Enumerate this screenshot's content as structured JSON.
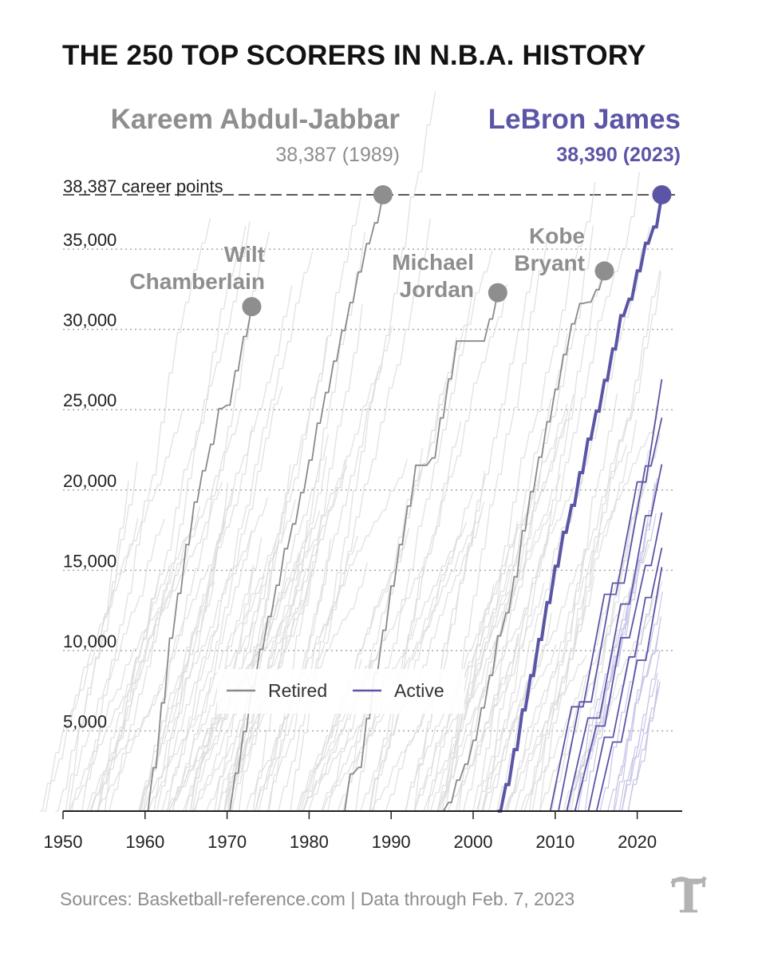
{
  "title": "THE 250 TOP SCORERS IN N.B.A. HISTORY",
  "source": "Sources: Basketball-reference.com | Data through Feb. 7, 2023",
  "colors": {
    "retired": "#8a8a8a",
    "active": "#5b55a6",
    "background_lines": "#e3e3e3"
  },
  "callouts": {
    "kareem": {
      "name": "Kareem Abdul-Jabbar",
      "stat": "38,387 (1989)"
    },
    "lebron": {
      "name": "LeBron James",
      "stat": "38,390 (2023)"
    }
  },
  "record_line_label": "38,387 career points",
  "legend": {
    "retired": "Retired",
    "active": "Active"
  },
  "chart_data": {
    "type": "line",
    "title": "THE 250 TOP SCORERS IN N.B.A. HISTORY",
    "xlim": [
      1950,
      2025
    ],
    "ylim": [
      0,
      38387
    ],
    "x_ticks": [
      1950,
      1960,
      1970,
      1980,
      1990,
      2000,
      2010,
      2020
    ],
    "x_tick_labels": [
      "1950",
      "1960",
      "1970",
      "1980",
      "1990",
      "2000",
      "2010",
      "2020"
    ],
    "y_ticks": [
      5000,
      10000,
      15000,
      20000,
      25000,
      30000,
      35000
    ],
    "y_tick_labels": [
      "5,000",
      "10,000",
      "15,000",
      "20,000",
      "25,000",
      "30,000",
      "35,000"
    ],
    "grid": "horizontal dotted",
    "reference_line": {
      "y": 38387,
      "label": "38,387 career points"
    },
    "legend_position": "lower-middle",
    "highlighted_series": [
      {
        "name": "Wilt Chamberlain",
        "status": "retired",
        "x": [
          1960,
          1961,
          1962,
          1963,
          1964,
          1965,
          1966,
          1967,
          1968,
          1969,
          1970,
          1971,
          1972,
          1973
        ],
        "y": [
          0,
          2707,
          6740,
          10769,
          13562,
          16596,
          19245,
          21201,
          22850,
          25069,
          25286,
          27426,
          29560,
          31419
        ]
      },
      {
        "name": "Kareem Abdul-Jabbar",
        "status": "retired",
        "x": [
          1970,
          1971,
          1972,
          1973,
          1974,
          1975,
          1976,
          1977,
          1978,
          1979,
          1980,
          1981,
          1982,
          1983,
          1984,
          1985,
          1986,
          1987,
          1988,
          1989
        ],
        "y": [
          0,
          2361,
          4957,
          7779,
          10072,
          12120,
          14069,
          16344,
          17887,
          19845,
          21860,
          24163,
          26075,
          28031,
          29930,
          31677,
          33586,
          35343,
          36639,
          38387
        ]
      },
      {
        "name": "Michael Jordan",
        "status": "retired",
        "x": [
          1984,
          1985,
          1986,
          1987,
          1988,
          1989,
          1990,
          1991,
          1992,
          1993,
          1994,
          1995,
          1996,
          1997,
          1998,
          2001,
          2002,
          2003
        ],
        "y": [
          0,
          2313,
          2721,
          5762,
          8630,
          11263,
          14016,
          16596,
          18999,
          21541,
          21541,
          21998,
          24489,
          26920,
          29277,
          29277,
          30652,
          32292
        ]
      },
      {
        "name": "Kobe Bryant",
        "status": "retired",
        "x": [
          1996,
          1997,
          1998,
          1999,
          2000,
          2001,
          2002,
          2003,
          2004,
          2005,
          2006,
          2007,
          2008,
          2009,
          2010,
          2011,
          2012,
          2013,
          2014,
          2015,
          2016
        ],
        "y": [
          0,
          539,
          1930,
          2926,
          4411,
          6430,
          8453,
          10914,
          12350,
          14595,
          17470,
          19900,
          22046,
          24247,
          26275,
          28434,
          30349,
          31617,
          31700,
          32482,
          33643
        ]
      },
      {
        "name": "LeBron James",
        "status": "active",
        "x": [
          2003,
          2004,
          2005,
          2006,
          2007,
          2008,
          2009,
          2010,
          2011,
          2012,
          2013,
          2014,
          2015,
          2016,
          2017,
          2018,
          2019,
          2020,
          2021,
          2022,
          2023
        ],
        "y": [
          0,
          1654,
          3829,
          6307,
          8439,
          10689,
          12993,
          15251,
          17362,
          19045,
          21081,
          23170,
          24914,
          26833,
          28787,
          30858,
          31886,
          33655,
          35367,
          36381,
          38390
        ]
      }
    ],
    "other_active_series": [
      {
        "x": [
          2008,
          2012,
          2016,
          2020,
          2023
        ],
        "y": [
          0,
          6500,
          13500,
          20500,
          26900
        ]
      },
      {
        "x": [
          2009,
          2013,
          2017,
          2021,
          2023
        ],
        "y": [
          0,
          6800,
          14200,
          21500,
          24500
        ]
      },
      {
        "x": [
          2010,
          2014,
          2018,
          2021,
          2023
        ],
        "y": [
          0,
          5800,
          12900,
          18400,
          21600
        ]
      },
      {
        "x": [
          2011,
          2015,
          2018,
          2021,
          2023
        ],
        "y": [
          0,
          5300,
          10800,
          15300,
          18600
        ]
      },
      {
        "x": [
          2013,
          2016,
          2019,
          2021,
          2023
        ],
        "y": [
          0,
          4600,
          9600,
          13300,
          16400
        ]
      },
      {
        "x": [
          2014,
          2017,
          2020,
          2023
        ],
        "y": [
          0,
          4300,
          9400,
          15200
        ]
      }
    ]
  }
}
